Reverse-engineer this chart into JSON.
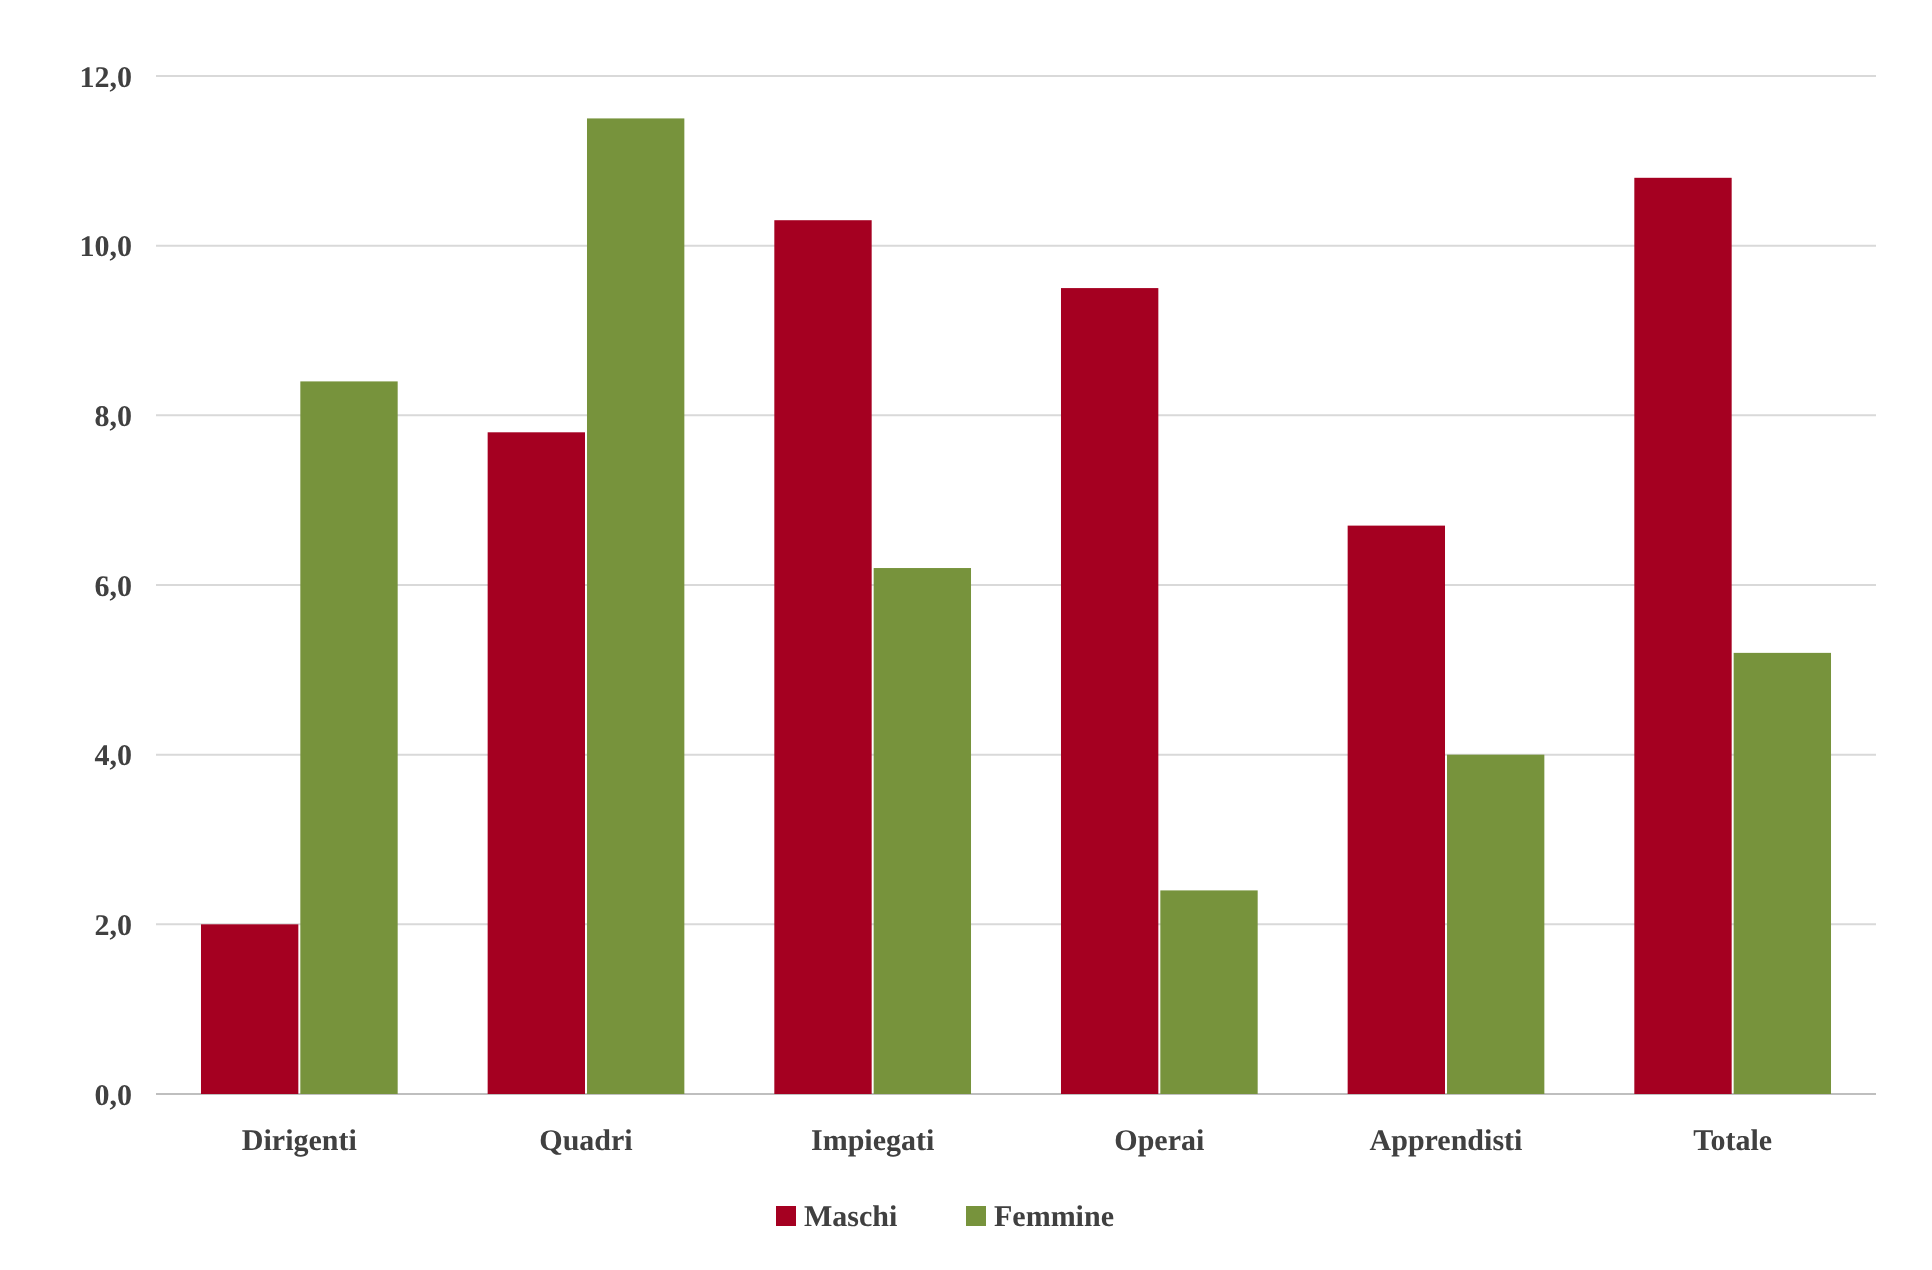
{
  "chart_data": {
    "type": "bar",
    "categories": [
      "Dirigenti",
      "Quadri",
      "Impiegati",
      "Operai",
      "Apprendisti",
      "Totale"
    ],
    "series": [
      {
        "name": "Maschi",
        "color": "#a50021",
        "values": [
          2.0,
          7.8,
          10.3,
          9.5,
          6.7,
          10.8
        ]
      },
      {
        "name": "Femmine",
        "color": "#77933c",
        "values": [
          8.4,
          11.5,
          6.2,
          2.4,
          4.0,
          5.2
        ]
      }
    ],
    "ylim": [
      0,
      12
    ],
    "yticks": [
      {
        "value": 0,
        "label": "0,0"
      },
      {
        "value": 2,
        "label": "2,0"
      },
      {
        "value": 4,
        "label": "4,0"
      },
      {
        "value": 6,
        "label": "6,0"
      },
      {
        "value": 8,
        "label": "8,0"
      },
      {
        "value": 10,
        "label": "10,0"
      },
      {
        "value": 12,
        "label": "12,0"
      }
    ],
    "grid": "y",
    "legend": "bottom"
  }
}
